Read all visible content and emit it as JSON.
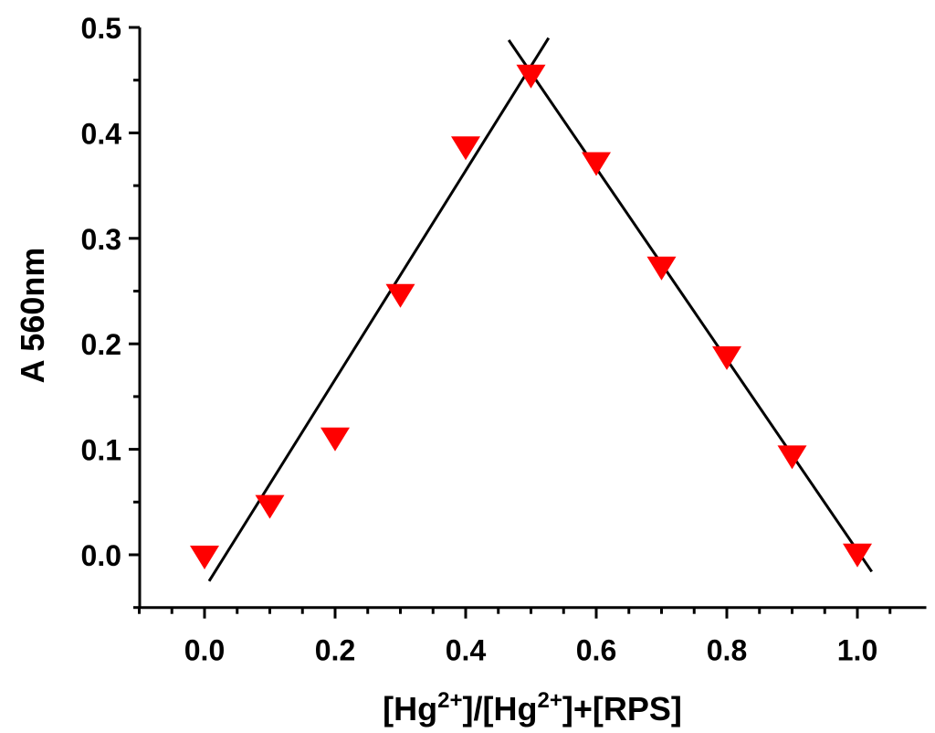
{
  "chart_data": {
    "type": "scatter",
    "title": "",
    "xlabel": "[Hg2+]/[Hg2+]+[RPS]",
    "xlabel_parts": {
      "a": "[Hg",
      "sup1": "2+",
      "b": "]/[Hg",
      "sup2": "2+",
      "c": "]+[RPS]"
    },
    "ylabel": "A 560nm",
    "xlim": [
      -0.1,
      1.1
    ],
    "ylim": [
      -0.05,
      0.5
    ],
    "xticks": [
      "0.0",
      "0.2",
      "0.4",
      "0.6",
      "0.8",
      "1.0"
    ],
    "yticks": [
      "0.0",
      "0.1",
      "0.2",
      "0.3",
      "0.4",
      "0.5"
    ],
    "grid": false,
    "marker": "down-triangle",
    "marker_color": "#ff0000",
    "line_color": "#000000",
    "points": {
      "x": [
        0.0,
        0.1,
        0.2,
        0.3,
        0.4,
        0.5,
        0.6,
        0.7,
        0.8,
        0.9,
        1.0
      ],
      "y": [
        0.0,
        0.048,
        0.112,
        0.248,
        0.388,
        0.456,
        0.373,
        0.274,
        0.189,
        0.095,
        0.002
      ]
    },
    "fit_lines": [
      {
        "x": [
          0.007,
          0.527
        ],
        "y": [
          -0.025,
          0.49
        ]
      },
      {
        "x": [
          0.466,
          1.022
        ],
        "y": [
          0.488,
          -0.016
        ]
      }
    ]
  }
}
